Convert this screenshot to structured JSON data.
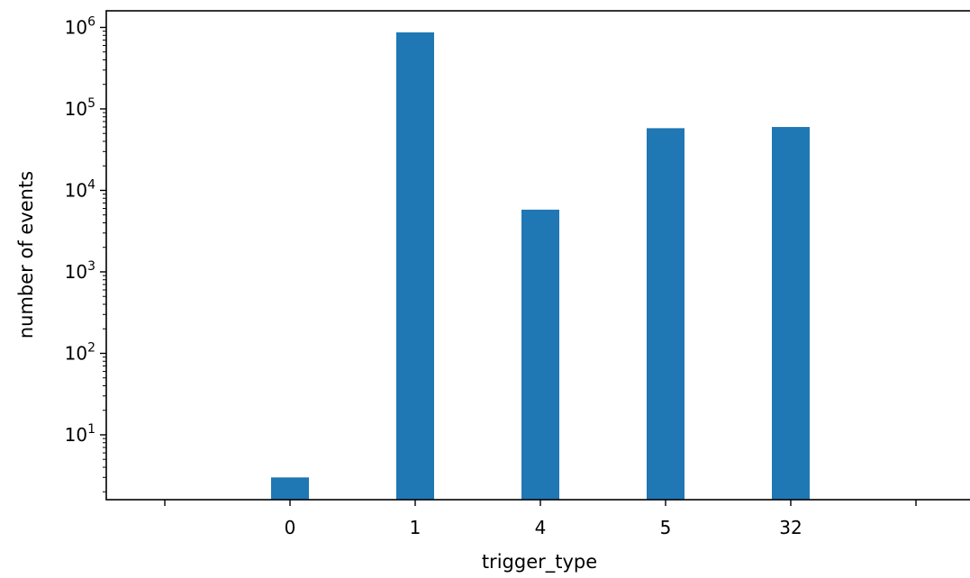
{
  "chart_data": {
    "type": "bar",
    "xlabel": "trigger_type",
    "ylabel": "number of events",
    "categories": [
      "0",
      "1",
      "4",
      "5",
      "32"
    ],
    "values": [
      3,
      870000,
      5800,
      58000,
      60000
    ],
    "yscale": "log",
    "ylim": [
      1.6,
      1600000
    ],
    "y_ticks": [
      {
        "base": "10",
        "exp": "1",
        "value": 10
      },
      {
        "base": "10",
        "exp": "2",
        "value": 100
      },
      {
        "base": "10",
        "exp": "3",
        "value": 1000
      },
      {
        "base": "10",
        "exp": "4",
        "value": 10000
      },
      {
        "base": "10",
        "exp": "5",
        "value": 100000
      },
      {
        "base": "10",
        "exp": "6",
        "value": 1000000
      }
    ],
    "extra_x_ticks": 2,
    "bar_color": "#1f77b4",
    "grid": false,
    "legend": "none"
  }
}
